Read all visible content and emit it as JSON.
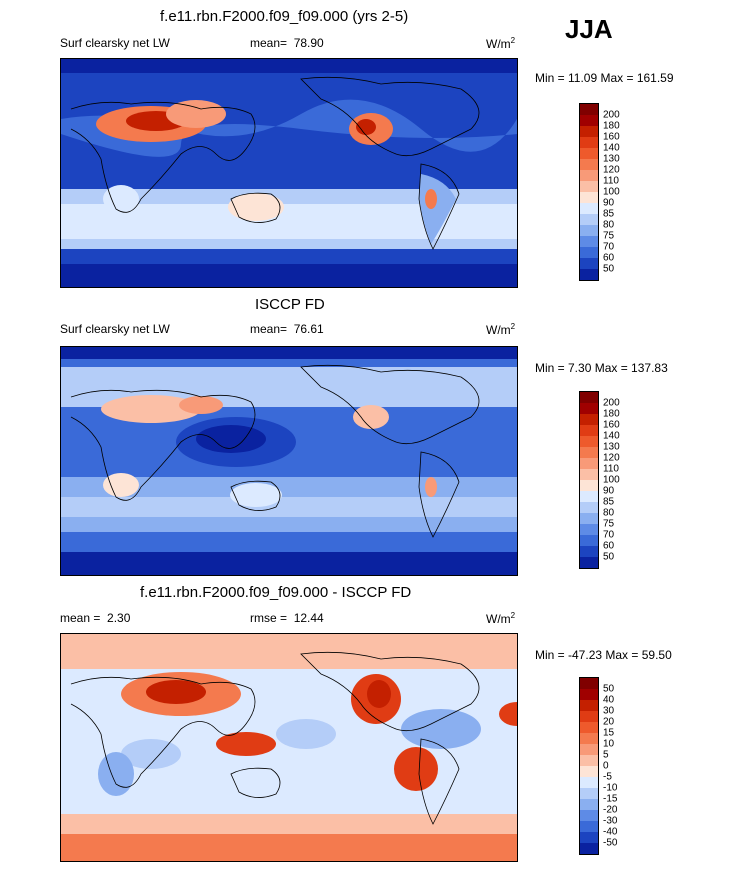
{
  "season": "JJA",
  "panels": [
    {
      "title": "f.e11.rbn.F2000.f09_f09.000 (yrs 2-5)",
      "left_label": "Surf clearsky net LW",
      "stat_label": "mean=",
      "stat_value": "78.90",
      "stat2_label": "",
      "stat2_value": "",
      "units": "W/m",
      "units_sup": "2",
      "minmax": "Min =  11.09 Max = 161.59",
      "colorbar": {
        "ticks": [
          "200",
          "180",
          "160",
          "140",
          "130",
          "120",
          "110",
          "100",
          "90",
          "85",
          "80",
          "75",
          "70",
          "60",
          "50"
        ],
        "colors": [
          "#800000",
          "#a00000",
          "#c42000",
          "#e03c14",
          "#ee5a2c",
          "#f47a4e",
          "#f89a78",
          "#fbbfa6",
          "#fde4d6",
          "#dceaff",
          "#b4cdf8",
          "#8aaff0",
          "#5e8be6",
          "#3a6ad8",
          "#1c44c0",
          "#0a22a0"
        ]
      }
    },
    {
      "title": "ISCCP FD",
      "left_label": "Surf clearsky net LW",
      "stat_label": "mean=",
      "stat_value": "76.61",
      "stat2_label": "",
      "stat2_value": "",
      "units": "W/m",
      "units_sup": "2",
      "minmax": "Min =   7.30 Max = 137.83",
      "colorbar": {
        "ticks": [
          "200",
          "180",
          "160",
          "140",
          "130",
          "120",
          "110",
          "100",
          "90",
          "85",
          "80",
          "75",
          "70",
          "60",
          "50"
        ],
        "colors": [
          "#800000",
          "#a00000",
          "#c42000",
          "#e03c14",
          "#ee5a2c",
          "#f47a4e",
          "#f89a78",
          "#fbbfa6",
          "#fde4d6",
          "#dceaff",
          "#b4cdf8",
          "#8aaff0",
          "#5e8be6",
          "#3a6ad8",
          "#1c44c0",
          "#0a22a0"
        ]
      }
    },
    {
      "title": "f.e11.rbn.F2000.f09_f09.000 - ISCCP FD",
      "left_label": "",
      "stat_label": "mean =",
      "stat_value": "2.30",
      "stat2_label": "rmse =",
      "stat2_value": "12.44",
      "units": "W/m",
      "units_sup": "2",
      "minmax": "Min = -47.23 Max =  59.50",
      "colorbar": {
        "ticks": [
          "50",
          "40",
          "30",
          "20",
          "15",
          "10",
          "5",
          "0",
          "-5",
          "-10",
          "-15",
          "-20",
          "-30",
          "-40",
          "-50"
        ],
        "colors": [
          "#800000",
          "#a00000",
          "#c42000",
          "#e03c14",
          "#ee5a2c",
          "#f47a4e",
          "#f89a78",
          "#fbbfa6",
          "#fde4d6",
          "#dceaff",
          "#b4cdf8",
          "#8aaff0",
          "#5e8be6",
          "#3a6ad8",
          "#1c44c0",
          "#0a22a0"
        ]
      }
    }
  ]
}
